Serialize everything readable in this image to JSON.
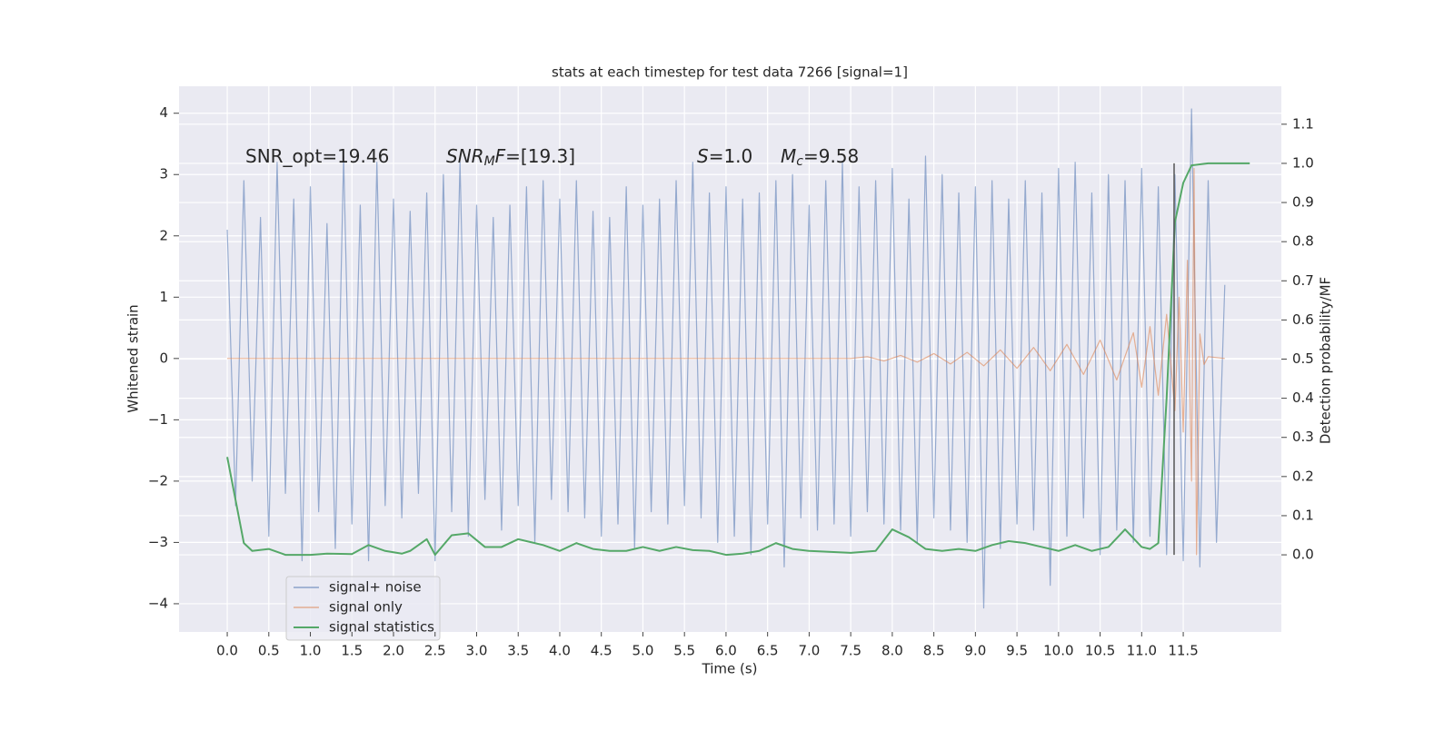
{
  "chart_data": {
    "type": "line",
    "title": "stats at each timestep for test data 7266 [signal=1]",
    "x_label": "Time (s)",
    "y_label": "Whitened strain",
    "y2_label": "Detection probability/MF",
    "xlim": [
      -0.58,
      12.68
    ],
    "ylim": [
      -4.46,
      4.44
    ],
    "y2lim": [
      -0.197,
      1.197
    ],
    "grid": true,
    "legend": "lower left",
    "background": "#eaeaf2",
    "xticks": [
      {
        "value": 0,
        "label": "0.0"
      },
      {
        "value": 0.5,
        "label": "0.5"
      },
      {
        "value": 1,
        "label": "1.0"
      },
      {
        "value": 1.5,
        "label": "1.5"
      },
      {
        "value": 2,
        "label": "2.0"
      },
      {
        "value": 2.5,
        "label": "2.5"
      },
      {
        "value": 3,
        "label": "3.0"
      },
      {
        "value": 3.5,
        "label": "3.5"
      },
      {
        "value": 4,
        "label": "4.0"
      },
      {
        "value": 4.5,
        "label": "4.5"
      },
      {
        "value": 5,
        "label": "5.0"
      },
      {
        "value": 5.5,
        "label": "5.5"
      },
      {
        "value": 6,
        "label": "6.0"
      },
      {
        "value": 6.5,
        "label": "6.5"
      },
      {
        "value": 7,
        "label": "7.0"
      },
      {
        "value": 7.5,
        "label": "7.5"
      },
      {
        "value": 8,
        "label": "8.0"
      },
      {
        "value": 8.5,
        "label": "8.5"
      },
      {
        "value": 9,
        "label": "9.0"
      },
      {
        "value": 9.5,
        "label": "9.5"
      },
      {
        "value": 10,
        "label": "10.0"
      },
      {
        "value": 10.5,
        "label": "10.5"
      },
      {
        "value": 11,
        "label": "11.0"
      },
      {
        "value": 11.5,
        "label": "11.5"
      }
    ],
    "yticks": [
      {
        "value": -4,
        "label": "−4"
      },
      {
        "value": -3,
        "label": "−3"
      },
      {
        "value": -2,
        "label": "−2"
      },
      {
        "value": -1,
        "label": "−1"
      },
      0,
      1,
      2,
      3,
      4
    ],
    "y2ticks": [
      {
        "value": 0,
        "label": "0.0"
      },
      {
        "value": 0.1,
        "label": "0.1"
      },
      {
        "value": 0.2,
        "label": "0.2"
      },
      {
        "value": 0.3,
        "label": "0.3"
      },
      {
        "value": 0.4,
        "label": "0.4"
      },
      {
        "value": 0.5,
        "label": "0.5"
      },
      {
        "value": 0.6,
        "label": "0.6"
      },
      {
        "value": 0.7,
        "label": "0.7"
      },
      {
        "value": 0.8,
        "label": "0.8"
      },
      {
        "value": 0.9,
        "label": "0.9"
      },
      {
        "value": 1,
        "label": "1.0"
      },
      {
        "value": 1.1,
        "label": "1.1"
      }
    ],
    "annotations": [
      [
        {
          "text": "SNR_opt=19.46"
        }
      ],
      [
        {
          "text": "SNR",
          "italic": true
        },
        {
          "text": "M",
          "italic": true,
          "sub": true
        },
        {
          "text": "F",
          "italic": true
        },
        {
          "text": "=[19.3]"
        }
      ],
      [
        {
          "text": "S",
          "italic": true
        },
        {
          "text": "=1.0"
        }
      ],
      [
        {
          "text": "M",
          "italic": true
        },
        {
          "text": "c",
          "italic": true,
          "sub": true
        },
        {
          "text": "=9.58"
        }
      ]
    ],
    "vline": {
      "x": 11.39,
      "color": "#555555"
    },
    "series": [
      {
        "name": "signal+ noise",
        "color": "#4c72b0",
        "x": [
          0,
          0.1,
          0.2,
          0.3,
          0.4,
          0.5,
          0.6,
          0.7,
          0.8,
          0.9,
          1,
          1.1,
          1.2,
          1.3,
          1.4,
          1.5,
          1.6,
          1.7,
          1.8,
          1.9,
          2,
          2.1,
          2.2,
          2.3,
          2.4,
          2.5,
          2.6,
          2.7,
          2.8,
          2.9,
          3,
          3.1,
          3.2,
          3.3,
          3.4,
          3.5,
          3.6,
          3.7,
          3.8,
          3.9,
          4,
          4.1,
          4.2,
          4.3,
          4.4,
          4.5,
          4.6,
          4.7,
          4.8,
          4.9,
          5,
          5.1,
          5.2,
          5.3,
          5.4,
          5.5,
          5.6,
          5.7,
          5.8,
          5.9,
          6,
          6.1,
          6.2,
          6.3,
          6.4,
          6.5,
          6.6,
          6.7,
          6.8,
          6.9,
          7,
          7.1,
          7.2,
          7.3,
          7.4,
          7.5,
          7.6,
          7.7,
          7.8,
          7.9,
          8,
          8.1,
          8.2,
          8.3,
          8.4,
          8.5,
          8.6,
          8.7,
          8.8,
          8.9,
          9,
          9.1,
          9.2,
          9.3,
          9.4,
          9.5,
          9.6,
          9.7,
          9.8,
          9.9,
          10,
          10.1,
          10.2,
          10.3,
          10.4,
          10.5,
          10.6,
          10.7,
          10.8,
          10.9,
          11,
          11.1,
          11.2,
          11.3,
          11.4,
          11.5,
          11.6,
          11.7,
          11.8,
          11.9,
          12
        ],
        "values": [
          2.1,
          -2.4,
          2.9,
          -2.0,
          2.3,
          -2.9,
          3.2,
          -2.2,
          2.6,
          -3.3,
          2.8,
          -2.5,
          2.2,
          -3.1,
          3.3,
          -2.7,
          2.5,
          -3.3,
          3.2,
          -2.4,
          2.6,
          -2.6,
          2.4,
          -2.2,
          2.7,
          -3.3,
          3.0,
          -2.5,
          3.2,
          -2.9,
          2.5,
          -2.3,
          2.3,
          -2.8,
          2.5,
          -2.4,
          2.8,
          -3.0,
          2.9,
          -2.3,
          2.6,
          -2.5,
          2.9,
          -2.6,
          2.4,
          -2.9,
          2.3,
          -2.7,
          2.8,
          -3.1,
          2.5,
          -2.5,
          2.6,
          -2.7,
          2.9,
          -2.4,
          3.2,
          -2.6,
          2.7,
          -3.0,
          2.8,
          -2.9,
          2.6,
          -3.2,
          2.7,
          -2.7,
          2.9,
          -3.4,
          3.0,
          -2.6,
          2.5,
          -2.8,
          2.9,
          -2.7,
          3.2,
          -2.9,
          2.8,
          -2.5,
          2.9,
          -2.7,
          3.1,
          -2.8,
          2.6,
          -3.0,
          3.3,
          -2.6,
          3.0,
          -2.8,
          2.7,
          -3.0,
          2.8,
          -4.07,
          2.9,
          -3.1,
          2.6,
          -2.7,
          2.9,
          -2.8,
          2.7,
          -3.7,
          3.1,
          -2.9,
          3.2,
          -2.6,
          2.7,
          -3.2,
          3.0,
          -2.8,
          2.9,
          -3.0,
          3.1,
          -2.9,
          2.8,
          -3.2,
          3.0,
          -3.3,
          4.07,
          -3.4,
          2.9,
          -3.0,
          1.2
        ]
      },
      {
        "name": "signal only",
        "color": "#dd8452",
        "x": [
          0,
          7.5,
          7.7,
          7.9,
          8.1,
          8.3,
          8.5,
          8.7,
          8.9,
          9.1,
          9.3,
          9.5,
          9.7,
          9.9,
          10.1,
          10.3,
          10.5,
          10.7,
          10.9,
          11.0,
          11.1,
          11.2,
          11.3,
          11.4,
          11.45,
          11.5,
          11.55,
          11.6,
          11.63,
          11.66,
          11.7,
          11.75,
          11.8,
          12.0
        ],
        "values": [
          0,
          0,
          0.03,
          -0.04,
          0.05,
          -0.06,
          0.08,
          -0.09,
          0.1,
          -0.12,
          0.14,
          -0.16,
          0.18,
          -0.2,
          0.23,
          -0.26,
          0.3,
          -0.35,
          0.42,
          -0.47,
          0.52,
          -0.6,
          0.72,
          -0.85,
          1.0,
          -1.2,
          1.6,
          -2.0,
          3.1,
          -3.2,
          0.4,
          -0.1,
          0.03,
          0
        ]
      },
      {
        "name": "signal statistics",
        "color": "#55a868",
        "axis": "y2",
        "x": [
          0,
          0.1,
          0.2,
          0.3,
          0.5,
          0.7,
          1.0,
          1.2,
          1.5,
          1.7,
          1.9,
          2.1,
          2.2,
          2.4,
          2.5,
          2.7,
          2.9,
          3.1,
          3.3,
          3.5,
          3.6,
          3.8,
          4.0,
          4.2,
          4.4,
          4.6,
          4.8,
          5.0,
          5.2,
          5.4,
          5.6,
          5.8,
          6.0,
          6.2,
          6.4,
          6.6,
          6.8,
          7.0,
          7.5,
          7.8,
          8.0,
          8.2,
          8.4,
          8.6,
          8.8,
          9.0,
          9.2,
          9.4,
          9.6,
          9.8,
          10.0,
          10.2,
          10.4,
          10.6,
          10.8,
          11.0,
          11.1,
          11.2,
          11.3,
          11.4,
          11.5,
          11.6,
          11.8,
          12.0,
          12.3
        ],
        "values": [
          0.25,
          0.14,
          0.03,
          0.01,
          0.015,
          0.0,
          0.0,
          0.003,
          0.002,
          0.025,
          0.01,
          0.003,
          0.01,
          0.04,
          0.0,
          0.05,
          0.055,
          0.02,
          0.02,
          0.04,
          0.035,
          0.025,
          0.01,
          0.03,
          0.015,
          0.01,
          0.01,
          0.02,
          0.01,
          0.02,
          0.012,
          0.01,
          0.0,
          0.003,
          0.01,
          0.03,
          0.015,
          0.01,
          0.005,
          0.01,
          0.065,
          0.045,
          0.015,
          0.01,
          0.015,
          0.01,
          0.025,
          0.035,
          0.03,
          0.02,
          0.01,
          0.025,
          0.01,
          0.02,
          0.065,
          0.02,
          0.015,
          0.03,
          0.4,
          0.85,
          0.95,
          0.995,
          1.0,
          1.0,
          1.0
        ]
      }
    ]
  }
}
